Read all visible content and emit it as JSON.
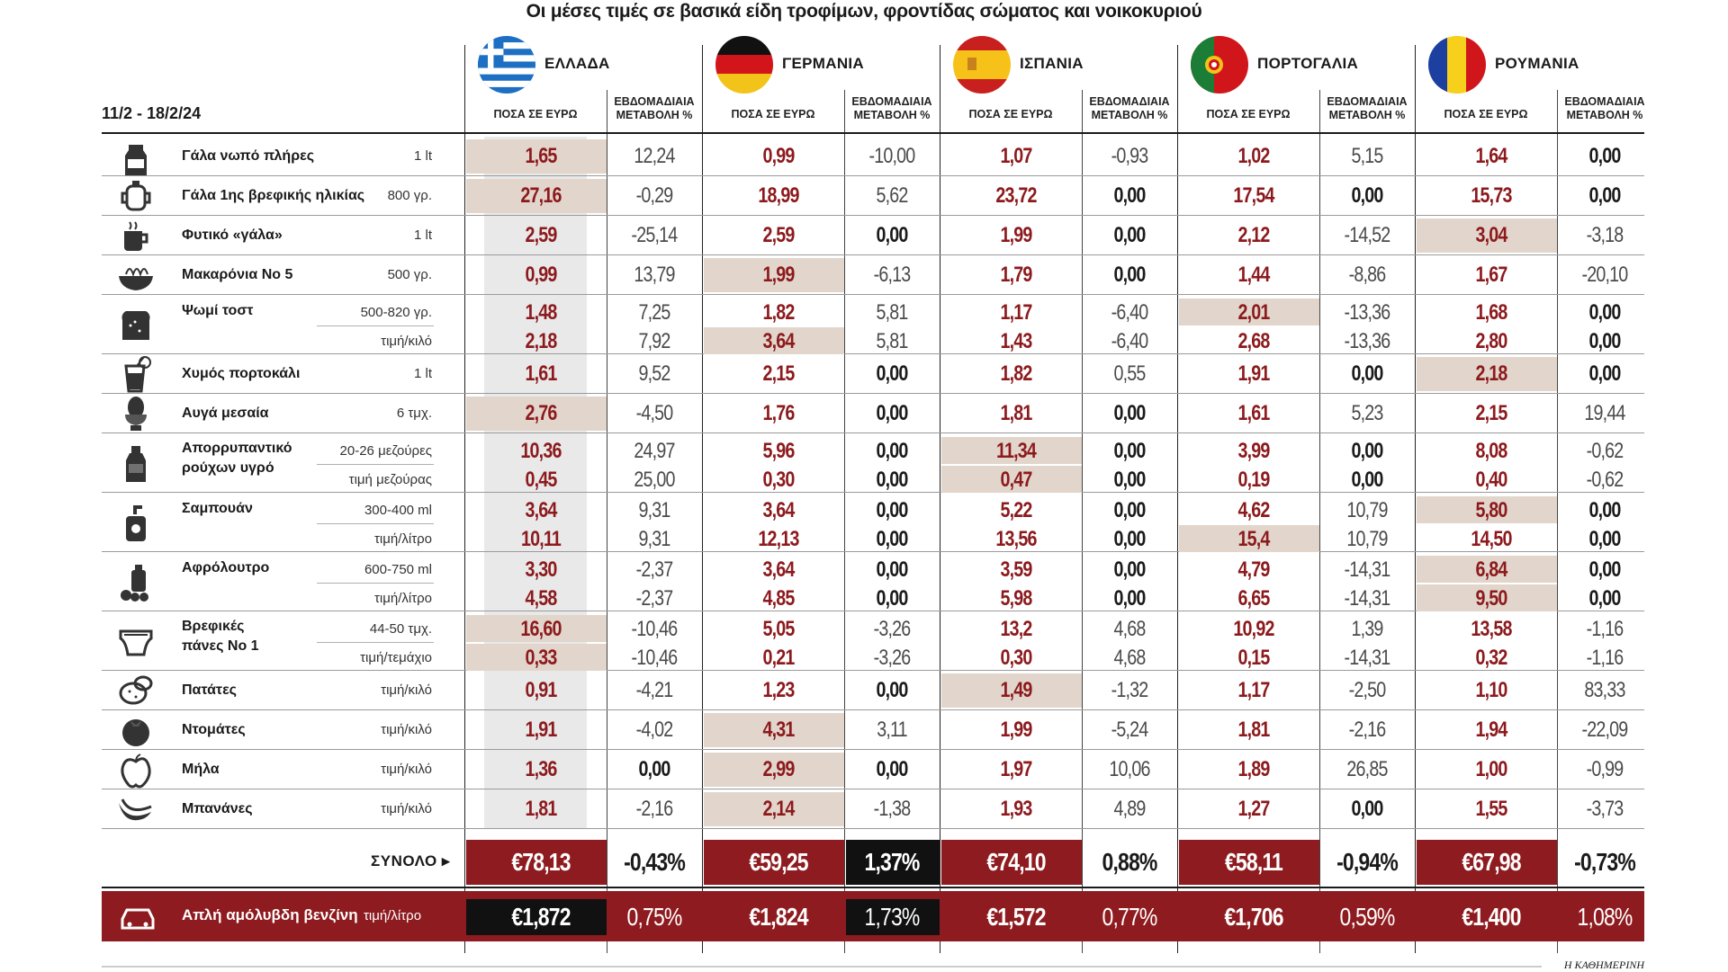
{
  "title": "Οι μέσες τιμές σε βασικά είδη τροφίμων, φροντίδας σώματος και νοικοκυριού",
  "period": "11/2 - 18/2/24",
  "col_price_header": "ΠΟΣΑ ΣΕ ΕΥΡΩ",
  "col_change_header_line1": "ΕΒΔΟΜΑΔΙΑΙΑ",
  "col_change_header_line2": "ΜΕΤΑΒΟΛΗ %",
  "countries": [
    {
      "name": "ΕΛΛΑΔΑ",
      "flag": "greece-flag"
    },
    {
      "name": "ΓΕΡΜΑΝΙΑ",
      "flag": "germany-flag"
    },
    {
      "name": "ΙΣΠΑΝΙΑ",
      "flag": "spain-flag"
    },
    {
      "name": "ΠΟΡΤΟΓΑΛΙΑ",
      "flag": "portugal-flag"
    },
    {
      "name": "ΡΟΥΜΑΝΙΑ",
      "flag": "romania-flag"
    }
  ],
  "colors": {
    "price": "#8c1a1d",
    "highlight": "#e2d6cc",
    "fuel_bar": "#8e1b1f",
    "dark_box": "#111111"
  },
  "chart_data": {
    "type": "table",
    "title": "Οι μέσες τιμές σε βασικά είδη τροφίμων, φροντίδας σώματος και νοικοκυριού",
    "columns": [
      "ΕΛΛΑΔΑ",
      "ΓΕΡΜΑΝΙΑ",
      "ΙΣΠΑΝΙΑ",
      "ΠΟΡΤΟΓΑΛΙΑ",
      "ΡΟΥΜΑΝΙΑ"
    ],
    "products": [
      {
        "name": "Γάλα νωπό πλήρες",
        "icon": "milk-carton-icon",
        "rows": [
          {
            "unit": "1 lt",
            "prices": [
              "1,65",
              "0,99",
              "1,07",
              "1,02",
              "1,64"
            ],
            "changes": [
              "12,24",
              "-10,00",
              "-0,93",
              "5,15",
              "0,00"
            ],
            "highlight": [
              0
            ]
          }
        ]
      },
      {
        "name": "Γάλα 1ης βρεφικής ηλικίας",
        "icon": "baby-cup-icon",
        "rows": [
          {
            "unit": "800 γρ.",
            "prices": [
              "27,16",
              "18,99",
              "23,72",
              "17,54",
              "15,73"
            ],
            "changes": [
              "-0,29",
              "5,62",
              "0,00",
              "0,00",
              "0,00"
            ],
            "highlight": [
              0
            ]
          }
        ]
      },
      {
        "name": "Φυτικό «γάλα»",
        "icon": "mug-icon",
        "rows": [
          {
            "unit": "1 lt",
            "prices": [
              "2,59",
              "2,59",
              "1,99",
              "2,12",
              "3,04"
            ],
            "changes": [
              "-25,14",
              "0,00",
              "0,00",
              "-14,52",
              "-3,18"
            ],
            "highlight": [
              4
            ]
          }
        ]
      },
      {
        "name": "Μακαρόνια Νο 5",
        "icon": "pasta-bowl-icon",
        "rows": [
          {
            "unit": "500 γρ.",
            "prices": [
              "0,99",
              "1,99",
              "1,79",
              "1,44",
              "1,67"
            ],
            "changes": [
              "13,79",
              "-6,13",
              "0,00",
              "-8,86",
              "-20,10"
            ],
            "highlight": [
              1
            ]
          }
        ]
      },
      {
        "name": "Ψωμί τοστ",
        "icon": "bread-icon",
        "rows": [
          {
            "unit": "500-820 γρ.",
            "prices": [
              "1,48",
              "1,82",
              "1,17",
              "2,01",
              "1,68"
            ],
            "changes": [
              "7,25",
              "5,81",
              "-6,40",
              "-13,36",
              "0,00"
            ],
            "highlight": [
              3
            ]
          },
          {
            "unit": "τιμή/κιλό",
            "prices": [
              "2,18",
              "3,64",
              "1,43",
              "2,68",
              "2,80"
            ],
            "changes": [
              "7,92",
              "5,81",
              "-6,40",
              "-13,36",
              "0,00"
            ],
            "highlight": [
              1
            ]
          }
        ]
      },
      {
        "name": "Χυμός πορτοκάλι",
        "icon": "juice-glass-icon",
        "rows": [
          {
            "unit": "1 lt",
            "prices": [
              "1,61",
              "2,15",
              "1,82",
              "1,91",
              "2,18"
            ],
            "changes": [
              "9,52",
              "0,00",
              "0,55",
              "0,00",
              "0,00"
            ],
            "highlight": [
              4
            ]
          }
        ]
      },
      {
        "name": "Αυγά μεσαία",
        "icon": "egg-cup-icon",
        "rows": [
          {
            "unit": "6 τμχ.",
            "prices": [
              "2,76",
              "1,76",
              "1,81",
              "1,61",
              "2,15"
            ],
            "changes": [
              "-4,50",
              "0,00",
              "0,00",
              "5,23",
              "19,44"
            ],
            "highlight": [
              0
            ]
          }
        ]
      },
      {
        "name": "Απορρυπαντικό ρούχων υγρό",
        "name_line1": "Απορρυπαντικό",
        "name_line2": "ρούχων υγρό",
        "icon": "detergent-bottle-icon",
        "rows": [
          {
            "unit": "20-26 μεζούρες",
            "prices": [
              "10,36",
              "5,96",
              "11,34",
              "3,99",
              "8,08"
            ],
            "changes": [
              "24,97",
              "0,00",
              "0,00",
              "0,00",
              "-0,62"
            ],
            "highlight": [
              2
            ]
          },
          {
            "unit": "τιμή μεζούρας",
            "prices": [
              "0,45",
              "0,30",
              "0,47",
              "0,19",
              "0,40"
            ],
            "changes": [
              "25,00",
              "0,00",
              "0,00",
              "0,00",
              "-0,62"
            ],
            "highlight": [
              2
            ]
          }
        ]
      },
      {
        "name": "Σαμπουάν",
        "icon": "shampoo-bottle-icon",
        "rows": [
          {
            "unit": "300-400 ml",
            "prices": [
              "3,64",
              "3,64",
              "5,22",
              "4,62",
              "5,80"
            ],
            "changes": [
              "9,31",
              "0,00",
              "0,00",
              "10,79",
              "0,00"
            ],
            "highlight": [
              4
            ]
          },
          {
            "unit": "τιμή/λίτρο",
            "prices": [
              "10,11",
              "12,13",
              "13,56",
              "15,4",
              "14,50"
            ],
            "changes": [
              "9,31",
              "0,00",
              "0,00",
              "10,79",
              "0,00"
            ],
            "highlight": [
              3
            ]
          }
        ]
      },
      {
        "name": "Αφρόλουτρο",
        "icon": "shower-gel-icon",
        "rows": [
          {
            "unit": "600-750 ml",
            "prices": [
              "3,30",
              "3,64",
              "3,59",
              "4,79",
              "6,84"
            ],
            "changes": [
              "-2,37",
              "0,00",
              "0,00",
              "-14,31",
              "0,00"
            ],
            "highlight": [
              4
            ]
          },
          {
            "unit": "τιμή/λίτρο",
            "prices": [
              "4,58",
              "4,85",
              "5,98",
              "6,65",
              "9,50"
            ],
            "changes": [
              "-2,37",
              "0,00",
              "0,00",
              "-14,31",
              "0,00"
            ],
            "highlight": [
              4
            ]
          }
        ]
      },
      {
        "name": "Βρεφικές πάνες Νο 1",
        "name_line1": "Βρεφικές",
        "name_line2": "πάνες Νο 1",
        "icon": "diaper-icon",
        "rows": [
          {
            "unit": "44-50 τμχ.",
            "prices": [
              "16,60",
              "5,05",
              "13,2",
              "10,92",
              "13,58"
            ],
            "changes": [
              "-10,46",
              "-3,26",
              "4,68",
              "1,39",
              "-1,16"
            ],
            "highlight": [
              0
            ]
          },
          {
            "unit": "τιμή/τεμάχιο",
            "prices": [
              "0,33",
              "0,21",
              "0,30",
              "0,15",
              "0,32"
            ],
            "changes": [
              "-10,46",
              "-3,26",
              "4,68",
              "-14,31",
              "-1,16"
            ],
            "highlight": [
              0
            ]
          }
        ]
      },
      {
        "name": "Πατάτες",
        "icon": "potato-icon",
        "rows": [
          {
            "unit": "τιμή/κιλό",
            "prices": [
              "0,91",
              "1,23",
              "1,49",
              "1,17",
              "1,10"
            ],
            "changes": [
              "-4,21",
              "0,00",
              "-1,32",
              "-2,50",
              "83,33"
            ],
            "highlight": [
              2
            ]
          }
        ]
      },
      {
        "name": "Ντομάτες",
        "icon": "tomato-icon",
        "rows": [
          {
            "unit": "τιμή/κιλό",
            "prices": [
              "1,91",
              "4,31",
              "1,99",
              "1,81",
              "1,94"
            ],
            "changes": [
              "-4,02",
              "3,11",
              "-5,24",
              "-2,16",
              "-22,09"
            ],
            "highlight": [
              1
            ]
          }
        ]
      },
      {
        "name": "Μήλα",
        "icon": "apple-icon",
        "rows": [
          {
            "unit": "τιμή/κιλό",
            "prices": [
              "1,36",
              "2,99",
              "1,97",
              "1,89",
              "1,00"
            ],
            "changes": [
              "0,00",
              "0,00",
              "10,06",
              "26,85",
              "-0,99"
            ],
            "highlight": [
              1
            ]
          }
        ]
      },
      {
        "name": "Μπανάνες",
        "icon": "banana-icon",
        "rows": [
          {
            "unit": "τιμή/κιλό",
            "prices": [
              "1,81",
              "2,14",
              "1,93",
              "1,27",
              "1,55"
            ],
            "changes": [
              "-2,16",
              "-1,38",
              "4,89",
              "0,00",
              "-3,73"
            ],
            "highlight": [
              1
            ]
          }
        ]
      }
    ],
    "total": {
      "label": "ΣΥΝΟΛΟ",
      "values": [
        "€78,13",
        "€59,25",
        "€74,10",
        "€58,11",
        "€67,98"
      ],
      "changes": [
        "-0,43%",
        "1,37%",
        "0,88%",
        "-0,94%",
        "-0,73%"
      ]
    },
    "fuel": {
      "label": "Απλή αμόλυβδη βενζίνη",
      "unit": "τιμή/λίτρο",
      "values": [
        "€1,872",
        "€1,824",
        "€1,572",
        "€1,706",
        "€1,400"
      ],
      "changes": [
        "0,75%",
        "1,73%",
        "0,77%",
        "0,59%",
        "1,08%"
      ]
    }
  },
  "source": "Η ΚΑΘΗΜΕΡΙΝΗ"
}
